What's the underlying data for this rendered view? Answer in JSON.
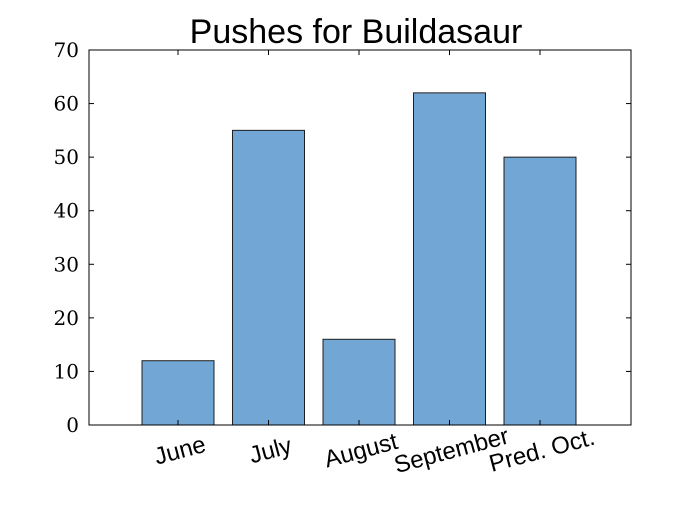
{
  "chart_data": {
    "type": "bar",
    "title": "Pushes for Buildasaur",
    "categories": [
      "June",
      "July",
      "August",
      "September",
      "Pred. Oct."
    ],
    "values": [
      12,
      55,
      16,
      62,
      50
    ],
    "xlabel": "",
    "ylabel": "",
    "ylim": [
      0,
      70
    ],
    "yticks": [
      0,
      10,
      20,
      30,
      40,
      50,
      60,
      70
    ],
    "bar_color": "#72a6d4",
    "grid": false,
    "legend": "none"
  }
}
